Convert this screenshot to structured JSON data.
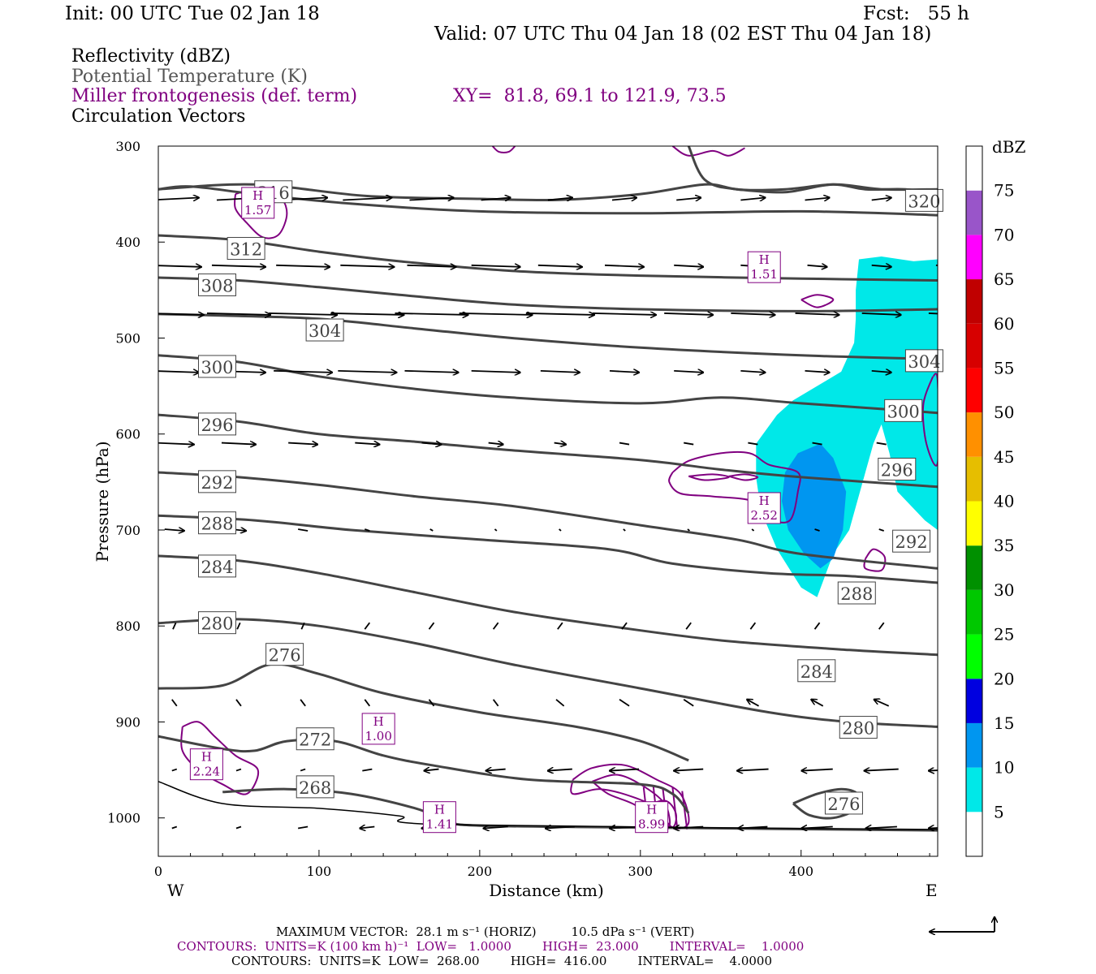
{
  "header": {
    "init": "Init: 00 UTC Tue 02 Jan 18",
    "fcst": "Fcst:   55 h",
    "valid": "Valid: 07 UTC Thu 04 Jan 18 (02 EST Thu 04 Jan 18)"
  },
  "legend": {
    "line1": "Reflectivity (dBZ)",
    "line2": "Potential Temperature (K)",
    "line3": "Miller frontogenesis (def. term)",
    "line4": "Circulation Vectors",
    "xy": "XY=  81.8, 69.1 to 121.9, 73.5"
  },
  "footer": {
    "max_vector": "MAXIMUM VECTOR:  28.1 m s⁻¹ (HORIZ)         10.5 dPa s⁻¹ (VERT)",
    "contours1": "CONTOURS:  UNITS=K (100 km h)⁻¹  LOW=   1.0000        HIGH=  23.000        INTERVAL=    1.0000",
    "contours2": "CONTOURS:  UNITS=K  LOW=  268.00        HIGH=  416.00        INTERVAL=    4.0000"
  },
  "chart_data": {
    "type": "cross-section",
    "xlabel": "Distance (km)",
    "ylabel": "Pressure (hPa)",
    "xlim": [
      0,
      485
    ],
    "ylim": [
      1040,
      300
    ],
    "x_ticks": [
      0,
      100,
      200,
      300,
      400
    ],
    "y_ticks": [
      300,
      400,
      500,
      600,
      700,
      800,
      900,
      1000
    ],
    "x_end_labels": {
      "west": "W",
      "east": "E"
    },
    "theta_contours": [
      {
        "label": "320",
        "points": [
          [
            0,
            345
          ],
          [
            60,
            340
          ],
          [
            130,
            352
          ],
          [
            200,
            355
          ],
          [
            250,
            356
          ],
          [
            300,
            350
          ],
          [
            340,
            340
          ],
          [
            360,
            345
          ],
          [
            390,
            348
          ],
          [
            420,
            340
          ],
          [
            450,
            345
          ],
          [
            485,
            345
          ]
        ],
        "lx": 465,
        "lp": 357
      },
      {
        "label": "316",
        "points": [
          [
            0,
            345
          ],
          [
            20,
            342
          ],
          [
            60,
            350
          ],
          [
            120,
            360
          ],
          [
            200,
            368
          ],
          [
            300,
            370
          ],
          [
            400,
            368
          ],
          [
            485,
            372
          ]
        ],
        "lx": 60,
        "lp": 348
      },
      {
        "label": "312",
        "points": [
          [
            0,
            393
          ],
          [
            50,
            398
          ],
          [
            100,
            410
          ],
          [
            150,
            420
          ],
          [
            220,
            430
          ],
          [
            300,
            435
          ],
          [
            400,
            438
          ],
          [
            485,
            440
          ]
        ],
        "lx": 43,
        "lp": 407
      },
      {
        "label": "308",
        "points": [
          [
            0,
            437
          ],
          [
            50,
            440
          ],
          [
            100,
            447
          ],
          [
            150,
            455
          ],
          [
            220,
            465
          ],
          [
            300,
            470
          ],
          [
            400,
            472
          ],
          [
            485,
            470
          ]
        ],
        "lx": 25,
        "lp": 445
      },
      {
        "label": "304",
        "points": [
          [
            0,
            475
          ],
          [
            50,
            477
          ],
          [
            100,
            480
          ],
          [
            160,
            490
          ],
          [
            220,
            500
          ],
          [
            300,
            510
          ],
          [
            400,
            518
          ],
          [
            485,
            522
          ]
        ],
        "lx": 92,
        "lp": 492
      },
      {
        "label": "300",
        "points": [
          [
            0,
            518
          ],
          [
            50,
            525
          ],
          [
            100,
            540
          ],
          [
            160,
            553
          ],
          [
            220,
            562
          ],
          [
            300,
            568
          ],
          [
            350,
            562
          ],
          [
            400,
            568
          ],
          [
            485,
            578
          ]
        ],
        "lx": 25,
        "lp": 530
      },
      {
        "label": "296",
        "points": [
          [
            0,
            580
          ],
          [
            50,
            587
          ],
          [
            100,
            600
          ],
          [
            160,
            608
          ],
          [
            220,
            617
          ],
          [
            300,
            627
          ],
          [
            350,
            637
          ],
          [
            400,
            645
          ],
          [
            485,
            655
          ]
        ],
        "lx": 25,
        "lp": 590
      },
      {
        "label": "292",
        "points": [
          [
            0,
            640
          ],
          [
            50,
            645
          ],
          [
            100,
            653
          ],
          [
            160,
            665
          ],
          [
            220,
            675
          ],
          [
            300,
            695
          ],
          [
            360,
            710
          ],
          [
            400,
            725
          ],
          [
            485,
            740
          ]
        ],
        "lx": 25,
        "lp": 650
      },
      {
        "label": "288",
        "points": [
          [
            0,
            685
          ],
          [
            60,
            690
          ],
          [
            120,
            700
          ],
          [
            200,
            710
          ],
          [
            280,
            720
          ],
          [
            320,
            735
          ],
          [
            380,
            745
          ],
          [
            430,
            748
          ],
          [
            485,
            755
          ]
        ],
        "lx": 25,
        "lp": 693
      },
      {
        "label": "284",
        "points": [
          [
            0,
            727
          ],
          [
            50,
            732
          ],
          [
            100,
            745
          ],
          [
            160,
            765
          ],
          [
            220,
            785
          ],
          [
            280,
            800
          ],
          [
            350,
            815
          ],
          [
            430,
            825
          ],
          [
            485,
            830
          ]
        ],
        "lx": 25,
        "lp": 738
      },
      {
        "label": "280",
        "points": [
          [
            0,
            797
          ],
          [
            50,
            793
          ],
          [
            100,
            800
          ],
          [
            160,
            818
          ],
          [
            220,
            840
          ],
          [
            300,
            865
          ],
          [
            380,
            890
          ],
          [
            430,
            900
          ],
          [
            485,
            905
          ]
        ],
        "lx": 25,
        "lp": 797
      },
      {
        "label": "276",
        "points": [
          [
            0,
            865
          ],
          [
            40,
            862
          ],
          [
            70,
            840
          ],
          [
            100,
            850
          ],
          [
            140,
            870
          ],
          [
            200,
            890
          ],
          [
            260,
            905
          ],
          [
            300,
            920
          ],
          [
            330,
            940
          ]
        ],
        "lx": 67,
        "lp": 830
      },
      {
        "label": "272",
        "points": [
          [
            0,
            915
          ],
          [
            40,
            928
          ],
          [
            60,
            930
          ],
          [
            80,
            920
          ],
          [
            110,
            920
          ],
          [
            140,
            935
          ],
          [
            170,
            945
          ],
          [
            230,
            960
          ],
          [
            300,
            965
          ],
          [
            320,
            975
          ],
          [
            330,
            995
          ]
        ],
        "lx": 86,
        "lp": 918
      },
      {
        "label": "268",
        "points": [
          [
            40,
            973
          ],
          [
            80,
            970
          ],
          [
            120,
            975
          ],
          [
            160,
            990
          ],
          [
            180,
            1003
          ],
          [
            200,
            1008
          ],
          [
            300,
            1010
          ],
          [
            485,
            1013
          ]
        ],
        "lx": 86,
        "lp": 968
      }
    ],
    "surface_line": [
      [
        0,
        962
      ],
      [
        40,
        985
      ],
      [
        100,
        990
      ],
      [
        150,
        998
      ],
      [
        180,
        1007
      ],
      [
        485,
        1012
      ]
    ],
    "frontogenesis_maxima": [
      {
        "label": "H",
        "value": "1.57",
        "x": 62,
        "p": 360
      },
      {
        "label": "H",
        "value": "1.51",
        "x": 377,
        "p": 427
      },
      {
        "label": "H",
        "value": "2.52",
        "x": 377,
        "p": 678
      },
      {
        "label": "H",
        "value": "2.24",
        "x": 30,
        "p": 945
      },
      {
        "label": "H",
        "value": "1.00",
        "x": 137,
        "p": 908
      },
      {
        "label": "H",
        "value": "1.41",
        "x": 175,
        "p": 1000
      },
      {
        "label": "H",
        "value": "8.99",
        "x": 307,
        "p": 1000
      }
    ],
    "colorbar": {
      "title": "dBZ",
      "levels": [
        "5",
        "10",
        "15",
        "20",
        "25",
        "30",
        "35",
        "40",
        "45",
        "50",
        "55",
        "60",
        "65",
        "70",
        "75"
      ],
      "colors": [
        "#00e8e8",
        "#0096f0",
        "#0000e0",
        "#00ff00",
        "#00c800",
        "#009000",
        "#ffff00",
        "#e6be00",
        "#ff9000",
        "#ff0000",
        "#d70000",
        "#c00000",
        "#ff00ff",
        "#9955c9",
        "#ffffff"
      ]
    },
    "reflectivity_regions": [
      {
        "dbz": 5,
        "color": "#00e8e8"
      },
      {
        "dbz": 10,
        "color": "#0096f0"
      }
    ]
  }
}
